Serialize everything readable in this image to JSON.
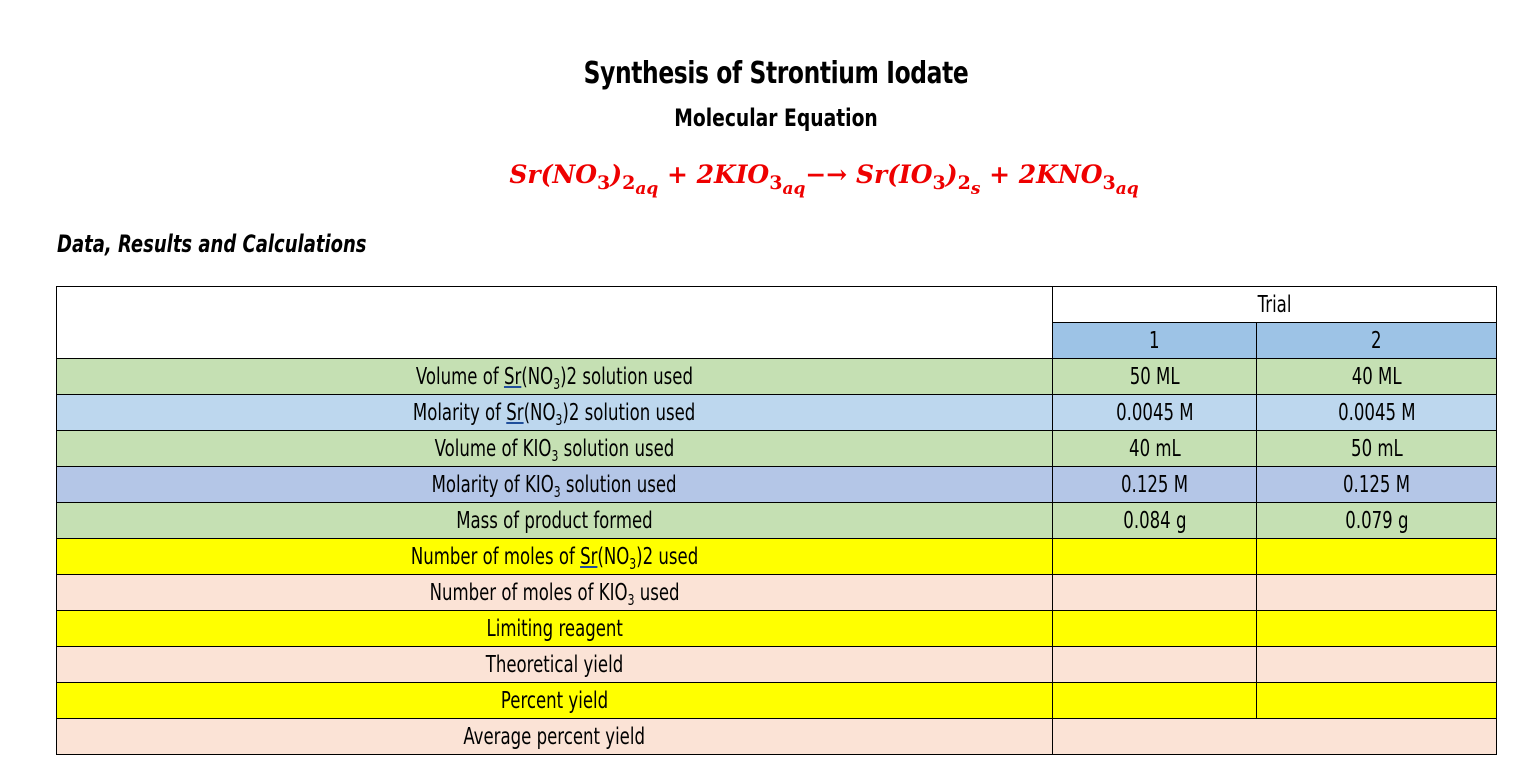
{
  "title": "Synthesis of Strontium Iodate",
  "subtitle": "Molecular Equation",
  "equation": {
    "r1": "Sr(NO",
    "r1_sub": "3",
    "r1_close": ")",
    "r1_phase_sub": "2",
    "r1_phase": "aq",
    "plus1": " + ",
    "r2": "2KIO",
    "r2_sub": "3",
    "r2_phase": "aq",
    "arrow": "−→ ",
    "p1": "Sr(IO",
    "p1_sub": "3",
    "p1_close": ")",
    "p1_phase_sub": "2",
    "p1_phase": "s",
    "plus2": " + ",
    "p2": "2KNO",
    "p2_sub": "3",
    "p2_phase": "aq"
  },
  "section_heading": "Data, Results and Calculations",
  "table": {
    "group_header": "Trial",
    "trial_headers": [
      "1",
      "2"
    ],
    "rows": [
      {
        "label_pre": "Volume of ",
        "label_u": "Sr",
        "label_mid": "(NO",
        "label_sub": "3",
        "label_post": ")2 solution used",
        "t1": "50 ML",
        "t2": "40 ML",
        "color": "green"
      },
      {
        "label_pre": "Molarity of ",
        "label_u": "Sr",
        "label_mid": "(NO",
        "label_sub": "3",
        "label_post": ")2 solution used",
        "t1": "0.0045 M",
        "t2": "0.0045 M",
        "color": "blue"
      },
      {
        "label_pre": "Volume of KIO",
        "label_sub": "3",
        "label_post": " solution used",
        "t1": "40 mL",
        "t2": "50 mL",
        "color": "green"
      },
      {
        "label_pre": "Molarity of KIO",
        "label_sub": "3",
        "label_post": " solution used",
        "t1": "0.125 M",
        "t2": "0.125 M",
        "color": "blue2"
      },
      {
        "label": "Mass of product formed",
        "t1": "0.084 g",
        "t2": "0.079 g",
        "color": "green"
      },
      {
        "label_pre": "Number of moles of ",
        "label_u": "Sr",
        "label_mid": "(NO",
        "label_sub": "3",
        "label_post": ")2 used",
        "t1": "",
        "t2": "",
        "color": "yellow"
      },
      {
        "label_pre": "Number of moles of KIO",
        "label_sub": "3",
        "label_post": " used",
        "t1": "",
        "t2": "",
        "color": "peach"
      },
      {
        "label": "Limiting reagent",
        "t1": "",
        "t2": "",
        "color": "yellow"
      },
      {
        "label": "Theoretical yield",
        "t1": "",
        "t2": "",
        "color": "peach"
      },
      {
        "label": "Percent yield",
        "t1": "",
        "t2": "",
        "color": "yellow"
      },
      {
        "label": "Average percent yield",
        "avg": "",
        "color": "peach"
      }
    ]
  },
  "colors": {
    "equation_red": "#ee0000",
    "trial_header_blue": "#9dc3e6",
    "green": "#c5e0b3",
    "blue": "#bdd7ee",
    "blue2": "#b4c6e7",
    "yellow": "#ffff00",
    "peach": "#fbe3d6"
  }
}
